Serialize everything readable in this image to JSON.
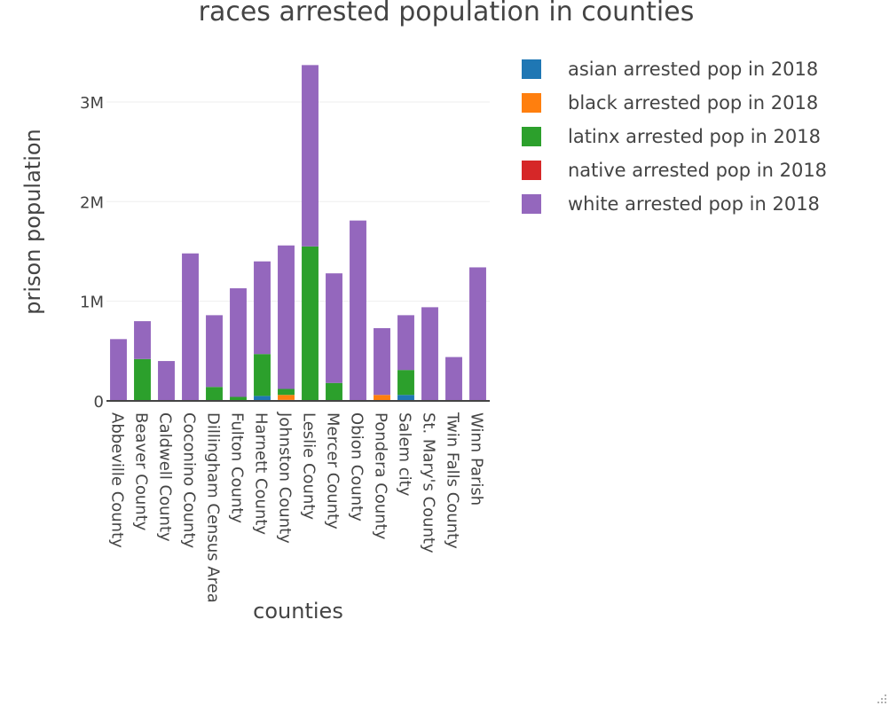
{
  "chart_data": {
    "type": "bar",
    "barmode": "stack",
    "title": "races arrested population in counties",
    "xlabel": "counties",
    "ylabel": "prison population",
    "ylim": [
      0,
      3400000
    ],
    "y_ticks": [
      {
        "value": 0,
        "label": "0"
      },
      {
        "value": 1000000,
        "label": "1M"
      },
      {
        "value": 2000000,
        "label": "2M"
      },
      {
        "value": 3000000,
        "label": "3M"
      }
    ],
    "grid": true,
    "legend_position": "top-right",
    "categories": [
      "Abbeville County",
      "Beaver County",
      "Caldwell County",
      "Coconino County",
      "Dillingham Census Area",
      "Fulton County",
      "Harnett County",
      "Johnston County",
      "Leslie County",
      "Mercer County",
      "Obion County",
      "Pondera County",
      "Salem city",
      "St. Mary's County",
      "Twin Falls County",
      "Winn Parish"
    ],
    "series": [
      {
        "name": "asian arrested pop in 2018",
        "color": "#1f77b4",
        "values": [
          0,
          0,
          0,
          0,
          0,
          0,
          50000,
          10000,
          0,
          0,
          0,
          0,
          60000,
          0,
          0,
          0
        ]
      },
      {
        "name": "black arrested pop in 2018",
        "color": "#ff7f0e",
        "values": [
          0,
          0,
          0,
          0,
          0,
          0,
          0,
          50000,
          0,
          0,
          0,
          60000,
          0,
          0,
          0,
          0
        ]
      },
      {
        "name": "latinx arrested pop in 2018",
        "color": "#2ca02c",
        "values": [
          0,
          420000,
          0,
          0,
          140000,
          40000,
          420000,
          60000,
          1550000,
          180000,
          0,
          0,
          250000,
          0,
          0,
          0
        ]
      },
      {
        "name": "native arrested pop in 2018",
        "color": "#d62728",
        "values": [
          0,
          0,
          0,
          0,
          0,
          0,
          0,
          0,
          0,
          0,
          0,
          0,
          0,
          0,
          0,
          0
        ]
      },
      {
        "name": "white arrested pop in 2018",
        "color": "#9467bd",
        "values": [
          620000,
          380000,
          400000,
          1480000,
          720000,
          1090000,
          930000,
          1440000,
          1820000,
          1100000,
          1810000,
          670000,
          550000,
          940000,
          440000,
          1340000
        ]
      }
    ]
  }
}
